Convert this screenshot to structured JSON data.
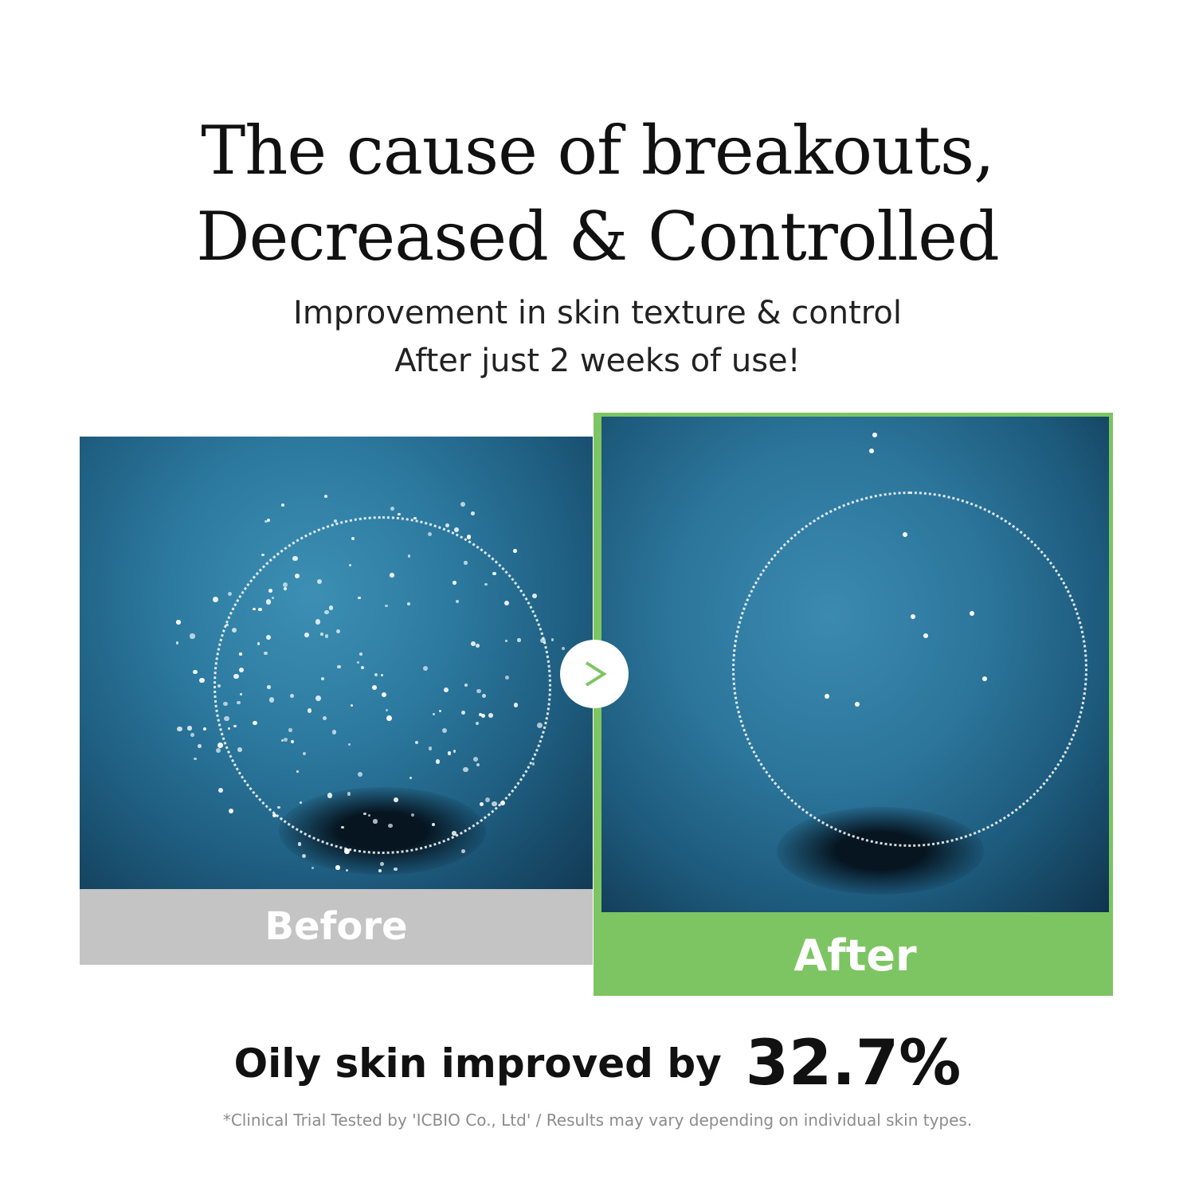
{
  "headline": {
    "line1": "The cause of breakouts,",
    "line2": "Decreased & Controlled"
  },
  "subheadline": {
    "line1": "Improvement in  skin texture & control",
    "line2": "After just 2 weeks of use!"
  },
  "comparison": {
    "before_label": "Before",
    "after_label": "After",
    "arrow_icon": "chevron-right-icon"
  },
  "result": {
    "label": "Oily skin improved by",
    "value": "32.7%"
  },
  "footnote": "*Clinical Trial Tested by 'ICBIO Co., Ltd' / Results may vary depending on individual skin types.",
  "colors": {
    "accent_green": "#7dc462",
    "before_gray": "#c4c4c4",
    "skin_blue": "#2d7aa0"
  }
}
